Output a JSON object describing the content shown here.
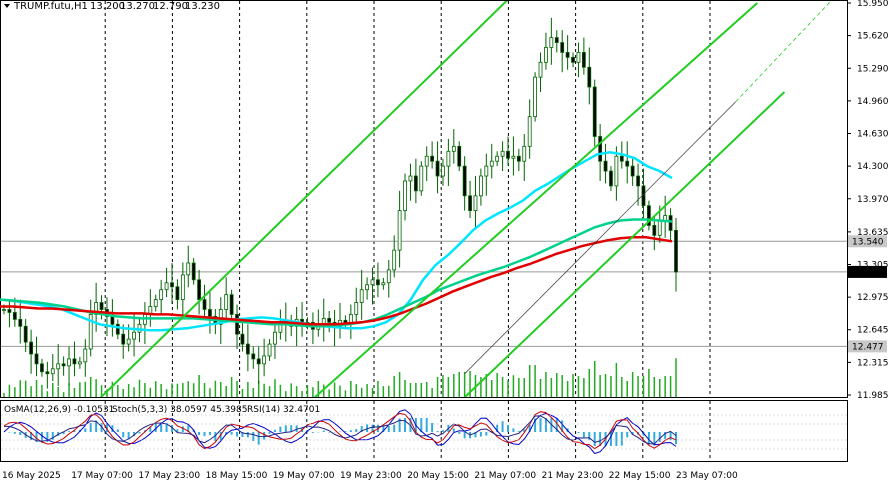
{
  "header": {
    "symbol": "TRUMP.futu,H1",
    "open": "13.200",
    "high": "13.270",
    "low": "12.790",
    "close": "13.230"
  },
  "indicator_header": {
    "osma": "OsMA(12,26,9) -0.10531",
    "stoch": "Stoch(5,3,3) 38.0597 45.3985",
    "rsi": "RSI(14) 32.4701"
  },
  "colors": {
    "candle": "#006400",
    "ma_fast": "#00e5ff",
    "ma_mid": "#00d28c",
    "ma_slow": "#e00000",
    "channel": "#22cc22",
    "volume": "#22aa22",
    "osma": "#33aadd",
    "stoch_main": "#0000cc",
    "stoch_signal": "#cc0000",
    "rsi": "#222288",
    "vgrid": "#000000"
  },
  "chart_data": {
    "type": "candlestick",
    "price_axis": {
      "min": 11.985,
      "max": 15.95,
      "ticks": [
        "15.950",
        "15.620",
        "15.290",
        "14.960",
        "14.630",
        "14.300",
        "13.970",
        "13.635",
        "13.305",
        "12.975",
        "12.645",
        "12.315",
        "11.985"
      ],
      "marked_levels": [
        {
          "label": "13.540",
          "value": 13.54,
          "style": "level"
        },
        {
          "label": "13.230",
          "value": 13.23,
          "style": "current"
        },
        {
          "label": "12.477",
          "value": 12.477,
          "style": "level"
        }
      ]
    },
    "time_axis": [
      "16 May 2025",
      "17 May 07:00",
      "17 May 23:00",
      "18 May 15:00",
      "19 May 07:00",
      "19 May 23:00",
      "20 May 15:00",
      "21 May 07:00",
      "21 May 23:00",
      "22 May 15:00",
      "23 May 07:00"
    ],
    "closes": [
      12.85,
      12.82,
      12.75,
      12.68,
      12.52,
      12.4,
      12.3,
      12.22,
      12.2,
      12.25,
      12.3,
      12.28,
      12.35,
      12.3,
      12.32,
      12.45,
      12.8,
      12.92,
      12.85,
      12.78,
      12.7,
      12.6,
      12.5,
      12.55,
      12.62,
      12.7,
      12.8,
      12.88,
      12.95,
      13.05,
      13.12,
      13.08,
      12.95,
      13.2,
      13.32,
      13.15,
      12.95,
      12.85,
      12.78,
      12.7,
      12.85,
      13.0,
      12.8,
      12.6,
      12.5,
      12.4,
      12.35,
      12.3,
      12.38,
      12.5,
      12.62,
      12.7,
      12.72,
      12.68,
      12.75,
      12.7,
      12.72,
      12.65,
      12.7,
      12.76,
      12.72,
      12.68,
      12.74,
      12.7,
      12.8,
      12.92,
      13.05,
      13.1,
      13.15,
      13.1,
      13.12,
      13.25,
      13.45,
      13.85,
      14.15,
      14.2,
      14.05,
      14.3,
      14.4,
      14.35,
      14.2,
      14.3,
      14.45,
      14.5,
      14.3,
      14.0,
      13.85,
      14.0,
      14.2,
      14.3,
      14.35,
      14.4,
      14.45,
      14.38,
      14.4,
      14.35,
      14.5,
      14.8,
      15.2,
      15.35,
      15.5,
      15.6,
      15.55,
      15.45,
      15.4,
      15.35,
      15.45,
      15.3,
      15.1,
      14.6,
      14.35,
      14.25,
      14.1,
      14.4,
      14.35,
      14.3,
      14.2,
      14.1,
      13.9,
      13.7,
      13.6,
      13.75,
      13.8,
      13.65,
      13.23
    ],
    "moving_averages": {
      "fast": [
        12.95,
        12.94,
        12.92,
        12.9,
        12.88,
        12.85,
        12.8,
        12.75,
        12.7,
        12.68,
        12.66,
        12.65,
        12.64,
        12.64,
        12.65,
        12.66,
        12.68,
        12.7,
        12.72,
        12.75,
        12.76,
        12.77,
        12.76,
        12.74,
        12.72,
        12.7,
        12.68,
        12.67,
        12.66,
        12.66,
        12.68,
        12.72,
        12.8,
        12.95,
        13.15,
        13.3,
        13.4,
        13.52,
        13.65,
        13.75,
        13.82,
        13.88,
        13.95,
        14.05,
        14.12,
        14.2,
        14.28,
        14.35,
        14.42,
        14.44,
        14.42,
        14.38,
        14.3,
        14.25,
        14.18
      ],
      "mid": [
        12.95,
        12.94,
        12.93,
        12.92,
        12.9,
        12.88,
        12.85,
        12.82,
        12.8,
        12.78,
        12.77,
        12.76,
        12.76,
        12.76,
        12.76,
        12.76,
        12.75,
        12.74,
        12.73,
        12.72,
        12.71,
        12.7,
        12.7,
        12.69,
        12.68,
        12.68,
        12.69,
        12.7,
        12.72,
        12.75,
        12.8,
        12.86,
        12.92,
        12.98,
        13.05,
        13.1,
        13.15,
        13.2,
        13.24,
        13.28,
        13.33,
        13.38,
        13.44,
        13.5,
        13.56,
        13.62,
        13.68,
        13.72,
        13.75,
        13.76,
        13.76,
        13.75,
        13.74
      ],
      "slow": [
        12.88,
        12.88,
        12.87,
        12.86,
        12.86,
        12.85,
        12.84,
        12.83,
        12.82,
        12.81,
        12.81,
        12.81,
        12.8,
        12.8,
        12.79,
        12.78,
        12.77,
        12.76,
        12.75,
        12.74,
        12.73,
        12.72,
        12.72,
        12.71,
        12.7,
        12.7,
        12.7,
        12.71,
        12.72,
        12.74,
        12.77,
        12.81,
        12.86,
        12.91,
        12.97,
        13.03,
        13.08,
        13.13,
        13.18,
        13.22,
        13.27,
        13.31,
        13.36,
        13.41,
        13.45,
        13.49,
        13.52,
        13.55,
        13.57,
        13.58,
        13.58,
        13.56,
        13.54
      ]
    },
    "channel_lines": [
      {
        "from": [
          13,
          11.7
        ],
        "to": [
          97,
          16.2
        ]
      },
      {
        "from": [
          80,
          11.7
        ],
        "to": [
          144,
          15.05
        ]
      },
      {
        "from": [
          52,
          11.7
        ],
        "to": [
          139,
          15.95
        ]
      }
    ]
  }
}
